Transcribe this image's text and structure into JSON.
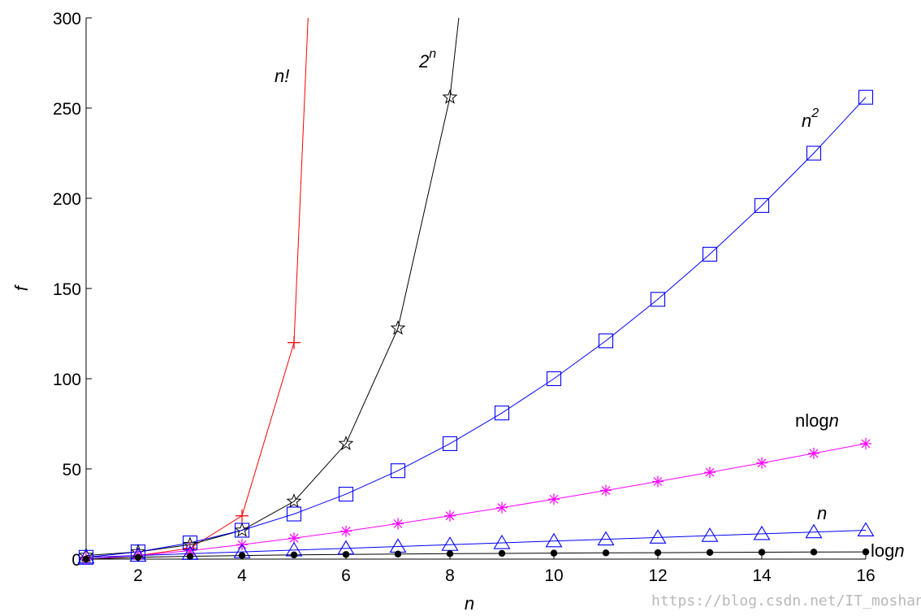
{
  "chart_data": {
    "type": "line",
    "xlabel": "n",
    "ylabel": "f",
    "xlim": [
      1,
      16
    ],
    "ylim": [
      0,
      300
    ],
    "x_ticks": [
      2,
      4,
      6,
      8,
      10,
      12,
      14,
      16
    ],
    "y_ticks": [
      0,
      50,
      100,
      150,
      200,
      250,
      300
    ],
    "grid": false,
    "series": [
      {
        "name": "n!",
        "color": "#ff0000",
        "marker": "plus",
        "x": [
          1,
          2,
          3,
          4,
          5,
          5.27
        ],
        "y": [
          1,
          2,
          6,
          24,
          120,
          300
        ],
        "marker_x": [
          1,
          2,
          3,
          4,
          5
        ]
      },
      {
        "name": "2n",
        "color": "#000000",
        "marker": "star",
        "x": [
          1,
          2,
          3,
          4,
          5,
          6,
          7,
          8,
          8.17
        ],
        "y": [
          2,
          4,
          8,
          16,
          32,
          64,
          128,
          256,
          300
        ],
        "marker_x": [
          1,
          2,
          3,
          4,
          5,
          6,
          7,
          8
        ]
      },
      {
        "name": "n2",
        "color": "#0000ff",
        "marker": "square",
        "x": [
          1,
          2,
          3,
          4,
          5,
          6,
          7,
          8,
          9,
          10,
          11,
          12,
          13,
          14,
          15,
          16
        ],
        "y": [
          1,
          4,
          9,
          16,
          25,
          36,
          49,
          64,
          81,
          100,
          121,
          144,
          169,
          196,
          225,
          256
        ]
      },
      {
        "name": "nlogn",
        "color": "#ff00ff",
        "marker": "asterisk",
        "x": [
          1,
          2,
          3,
          4,
          5,
          6,
          7,
          8,
          9,
          10,
          11,
          12,
          13,
          14,
          15,
          16
        ],
        "y": [
          0,
          2,
          4.75,
          8,
          11.61,
          15.51,
          19.65,
          24,
          28.53,
          33.22,
          38.05,
          43.02,
          48.11,
          53.3,
          58.6,
          64
        ]
      },
      {
        "name": "n",
        "color": "#0000ff",
        "marker": "triangle",
        "x": [
          1,
          2,
          3,
          4,
          5,
          6,
          7,
          8,
          9,
          10,
          11,
          12,
          13,
          14,
          15,
          16
        ],
        "y": [
          1,
          2,
          3,
          4,
          5,
          6,
          7,
          8,
          9,
          10,
          11,
          12,
          13,
          14,
          15,
          16
        ]
      },
      {
        "name": "logn",
        "color": "#000000",
        "marker": "dot",
        "x": [
          1,
          2,
          3,
          4,
          5,
          6,
          7,
          8,
          9,
          10,
          11,
          12,
          13,
          14,
          15,
          16
        ],
        "y": [
          0,
          1,
          1.58,
          2,
          2.32,
          2.58,
          2.81,
          3,
          3.17,
          3.32,
          3.46,
          3.58,
          3.7,
          3.81,
          3.91,
          4
        ]
      }
    ],
    "annotations": {
      "n_fact": {
        "base": "n!"
      },
      "two_n": {
        "base": "2",
        "sup": "n"
      },
      "n_sq": {
        "base": "n",
        "sup": "2"
      },
      "nlogn": {
        "prefix": "nlog",
        "italic": "n"
      },
      "n": {
        "base": "n"
      },
      "logn": {
        "prefix": "log",
        "italic": "n"
      }
    }
  },
  "watermark": "https://blog.csdn.net/IT_moshang"
}
